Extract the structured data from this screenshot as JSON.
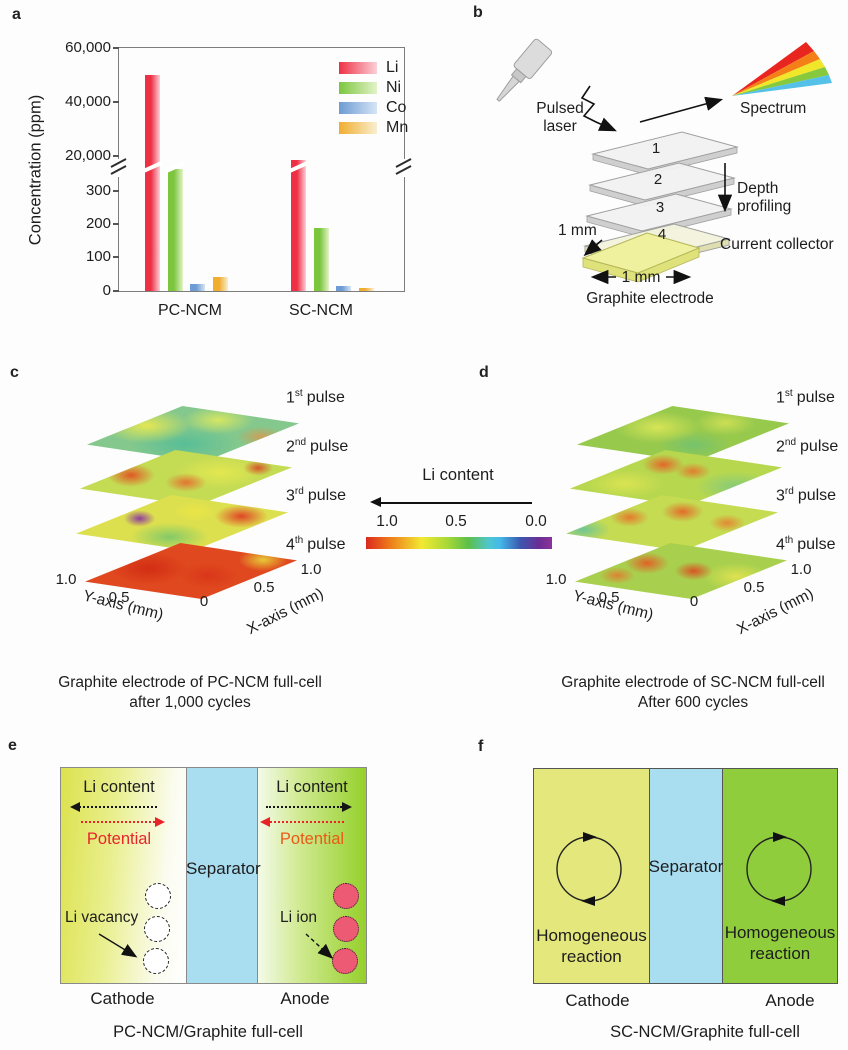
{
  "panel_a": {
    "label": "a",
    "ylabel": "Concentration (ppm)",
    "yticks_upper": [
      "60,000",
      "40,000",
      "20,000"
    ],
    "yticks_lower": [
      "300",
      "200",
      "100",
      "0"
    ],
    "xlabels": [
      "PC-NCM",
      "SC-NCM"
    ],
    "legend": [
      {
        "label": "Li",
        "color": "#ee3045",
        "light": "#fbd0d8"
      },
      {
        "label": "Ni",
        "color": "#7cc63e",
        "light": "#e2f3c8"
      },
      {
        "label": "Co",
        "color": "#6d9bd3",
        "light": "#d6e4f6"
      },
      {
        "label": "Mn",
        "color": "#f0ad2e",
        "light": "#f8efcf"
      }
    ]
  },
  "chart_data": [
    {
      "type": "bar",
      "panel": "a",
      "title": "",
      "xlabel": "",
      "ylabel": "Concentration (ppm)",
      "categories": [
        "PC-NCM",
        "SC-NCM"
      ],
      "series": [
        {
          "name": "Li",
          "values": [
            50000,
            380
          ]
        },
        {
          "name": "Ni",
          "values": [
            350,
            180
          ]
        },
        {
          "name": "Co",
          "values": [
            20,
            15
          ]
        },
        {
          "name": "Mn",
          "values": [
            40,
            8
          ]
        }
      ],
      "ylim_lower": [
        0,
        350
      ],
      "ylim_upper": [
        20000,
        60000
      ],
      "yticks_lower": [
        0,
        100,
        200,
        300
      ],
      "yticks_upper": [
        20000,
        40000,
        60000
      ],
      "axis_break": true,
      "note": "y axis broken between 350 and 20,000 ppm; PC-NCM Ni bar and SC-NCM Li bar terminate at the axis break",
      "legend_position": "top-right",
      "grid": false
    },
    {
      "type": "heatmap",
      "panel": "c",
      "title": "Graphite electrode of PC-NCM full-cell after 1,000 cycles",
      "layers": [
        "1st pulse",
        "2nd pulse",
        "3rd pulse",
        "4th pulse"
      ],
      "xlabel": "X-axis (mm)",
      "ylabel": "Y-axis (mm)",
      "x_range": [
        0,
        1.0
      ],
      "y_range": [
        0,
        1.0
      ],
      "colorbar": {
        "title": "Li content",
        "range": [
          1.0,
          0.0
        ]
      },
      "qualitative_values": "pulse 1 mixed green/teal (~0.5); pulse 2 yellow-green with local red spots; pulse 3 yellow with red and purple spots; pulse 4 mostly red (~0.9) — strongly inhomogeneous with depth"
    },
    {
      "type": "heatmap",
      "panel": "d",
      "title": "Graphite electrode of SC-NCM full-cell After 600 cycles",
      "layers": [
        "1st pulse",
        "2nd pulse",
        "3rd pulse",
        "4th pulse"
      ],
      "xlabel": "X-axis (mm)",
      "ylabel": "Y-axis (mm)",
      "x_range": [
        0,
        1.0
      ],
      "y_range": [
        0,
        1.0
      ],
      "colorbar": {
        "title": "Li content",
        "range": [
          1.0,
          0.0
        ]
      },
      "qualitative_values": "all four pulses fairly uniform yellow-green (~0.6) with small orange spots — relatively homogeneous with depth"
    }
  ],
  "panel_b": {
    "label": "b",
    "pulsed_laser_line1": "Pulsed",
    "pulsed_laser_line2": "laser",
    "spectrum": "Spectrum",
    "layers": [
      "1",
      "2",
      "3",
      "4"
    ],
    "depth_line1": "Depth",
    "depth_line2": "profiling",
    "side_scale": "1 mm",
    "current_collector": "Current collector",
    "bottom_scale": "1 mm",
    "bottom_label": "Graphite electrode"
  },
  "panel_c": {
    "label": "c",
    "pulses": [
      {
        "n": "1",
        "sup": "st",
        "word": "pulse"
      },
      {
        "n": "2",
        "sup": "nd",
        "word": "pulse"
      },
      {
        "n": "3",
        "sup": "rd",
        "word": "pulse"
      },
      {
        "n": "4",
        "sup": "th",
        "word": "pulse"
      }
    ],
    "y_axis": {
      "title": "Y-axis (mm)",
      "ticks": [
        "1.0",
        "0.5"
      ]
    },
    "x_axis": {
      "title": "X-axis (mm)",
      "ticks": [
        "0",
        "0.5",
        "1.0"
      ]
    },
    "caption_line1": "Graphite electrode of PC-NCM full-cell",
    "caption_line2": "after 1,000 cycles"
  },
  "colorbar": {
    "title": "Li content",
    "ticks": [
      "1.0",
      "0.5",
      "0.0"
    ]
  },
  "panel_d": {
    "label": "d",
    "pulses": [
      {
        "n": "1",
        "sup": "st",
        "word": "pulse"
      },
      {
        "n": "2",
        "sup": "nd",
        "word": "pulse"
      },
      {
        "n": "3",
        "sup": "rd",
        "word": "pulse"
      },
      {
        "n": "4",
        "sup": "th",
        "word": "pulse"
      }
    ],
    "y_axis": {
      "title": "Y-axis (mm)",
      "ticks": [
        "1.0",
        "0.5"
      ]
    },
    "x_axis": {
      "title": "X-axis (mm)",
      "ticks": [
        "0",
        "0.5",
        "1.0"
      ]
    },
    "caption_line1": "Graphite electrode of SC-NCM full-cell",
    "caption_line2": "After 600 cycles"
  },
  "panel_e": {
    "label": "e",
    "li_content": "Li content",
    "potential": "Potential",
    "separator": "Separator",
    "li_vacancy": "Li vacancy",
    "li_ion": "Li ion",
    "cathode": "Cathode",
    "anode": "Anode",
    "caption": "PC-NCM/Graphite full-cell",
    "potential_color_left": "#e8242b",
    "potential_color_right": "#ea5a17",
    "separator_color": "#a9def1",
    "li_ion_color": "#ec5a74"
  },
  "panel_f": {
    "label": "f",
    "separator": "Separator",
    "homog_line1": "Homogeneous",
    "homog_line2": "reaction",
    "cathode": "Cathode",
    "anode": "Anode",
    "caption": "SC-NCM/Graphite full-cell",
    "cathode_color": "#e4e87c",
    "anode_color": "#8fcd3d",
    "separator_color": "#a9def1"
  }
}
